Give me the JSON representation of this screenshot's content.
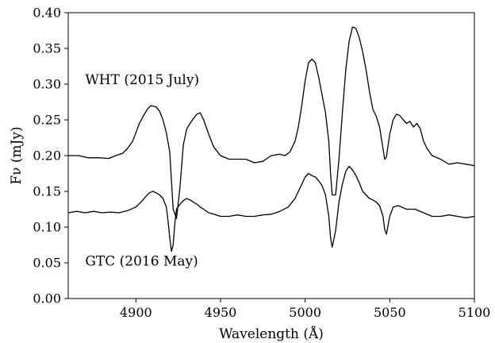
{
  "chart_data": {
    "type": "line",
    "title": "",
    "xlabel": "Wavelength (Å)",
    "ylabel": "Fν (mJy)",
    "xlim": [
      4860,
      5100
    ],
    "ylim": [
      0.0,
      0.4
    ],
    "xticks": [
      4900,
      4950,
      5000,
      5050,
      5100
    ],
    "xtick_labels": [
      "4900",
      "4950",
      "5000",
      "5050",
      "5100"
    ],
    "yticks": [
      0.0,
      0.05,
      0.1,
      0.15,
      0.2,
      0.25,
      0.3,
      0.35,
      0.4
    ],
    "ytick_labels": [
      "0.00",
      "0.05",
      "0.10",
      "0.15",
      "0.20",
      "0.25",
      "0.30",
      "0.35",
      "0.40"
    ],
    "grid": false,
    "legend": "none",
    "annotations": [
      {
        "text": "WHT (2015 July)",
        "x": 4870,
        "y": 0.3
      },
      {
        "text": "GTC (2016 May)",
        "x": 4870,
        "y": 0.046
      }
    ],
    "series": [
      {
        "name": "WHT (2015 July)",
        "color": "#000000",
        "x": [
          4860,
          4866,
          4872,
          4878,
          4884,
          4888,
          4892,
          4895,
          4898,
          4900,
          4902,
          4905,
          4907,
          4909,
          4912,
          4914,
          4916,
          4918,
          4920,
          4921,
          4922,
          4924,
          4926,
          4928,
          4930,
          4932,
          4934,
          4936,
          4938,
          4940,
          4943,
          4946,
          4950,
          4955,
          4960,
          4965,
          4970,
          4975,
          4980,
          4985,
          4988,
          4991,
          4994,
          4996,
          4998,
          5000,
          5002,
          5004,
          5006,
          5008,
          5010,
          5012,
          5014,
          5015,
          5016,
          5018,
          5020,
          5022,
          5024,
          5026,
          5028,
          5030,
          5032,
          5034,
          5036,
          5038,
          5040,
          5042,
          5044,
          5046,
          5047,
          5048,
          5050,
          5052,
          5054,
          5056,
          5058,
          5060,
          5062,
          5064,
          5066,
          5068,
          5070,
          5072,
          5075,
          5080,
          5085,
          5090,
          5095,
          5100
        ],
        "y": [
          0.2,
          0.2,
          0.197,
          0.197,
          0.196,
          0.2,
          0.203,
          0.21,
          0.22,
          0.232,
          0.245,
          0.258,
          0.266,
          0.27,
          0.268,
          0.262,
          0.25,
          0.232,
          0.205,
          0.165,
          0.125,
          0.112,
          0.155,
          0.215,
          0.237,
          0.245,
          0.252,
          0.258,
          0.26,
          0.25,
          0.23,
          0.212,
          0.2,
          0.195,
          0.195,
          0.195,
          0.19,
          0.192,
          0.2,
          0.202,
          0.2,
          0.205,
          0.22,
          0.24,
          0.27,
          0.305,
          0.33,
          0.335,
          0.33,
          0.31,
          0.285,
          0.26,
          0.22,
          0.175,
          0.145,
          0.145,
          0.195,
          0.26,
          0.32,
          0.36,
          0.38,
          0.378,
          0.365,
          0.345,
          0.32,
          0.29,
          0.265,
          0.255,
          0.24,
          0.21,
          0.195,
          0.198,
          0.23,
          0.25,
          0.258,
          0.256,
          0.25,
          0.245,
          0.248,
          0.24,
          0.245,
          0.238,
          0.22,
          0.21,
          0.2,
          0.195,
          0.188,
          0.19,
          0.188,
          0.186
        ]
      },
      {
        "name": "GTC (2016 May)",
        "color": "#000000",
        "x": [
          4860,
          4865,
          4870,
          4875,
          4880,
          4885,
          4890,
          4895,
          4900,
          4903,
          4906,
          4908,
          4910,
          4912,
          4914,
          4916,
          4918,
          4919,
          4920,
          4921,
          4922,
          4923,
          4924,
          4926,
          4928,
          4930,
          4932,
          4934,
          4936,
          4938,
          4940,
          4943,
          4946,
          4950,
          4955,
          4960,
          4965,
          4970,
          4975,
          4980,
          4985,
          4990,
          4994,
          4997,
          5000,
          5002,
          5004,
          5006,
          5008,
          5010,
          5012,
          5014,
          5015,
          5016,
          5018,
          5020,
          5022,
          5024,
          5026,
          5028,
          5030,
          5032,
          5034,
          5036,
          5038,
          5040,
          5042,
          5044,
          5046,
          5047,
          5048,
          5050,
          5052,
          5055,
          5060,
          5065,
          5070,
          5075,
          5080,
          5085,
          5090,
          5095,
          5100
        ],
        "y": [
          0.12,
          0.122,
          0.12,
          0.122,
          0.12,
          0.121,
          0.12,
          0.123,
          0.128,
          0.135,
          0.143,
          0.148,
          0.15,
          0.148,
          0.145,
          0.14,
          0.128,
          0.108,
          0.085,
          0.066,
          0.075,
          0.105,
          0.125,
          0.132,
          0.137,
          0.14,
          0.138,
          0.135,
          0.132,
          0.128,
          0.125,
          0.12,
          0.118,
          0.115,
          0.115,
          0.117,
          0.115,
          0.115,
          0.117,
          0.118,
          0.122,
          0.128,
          0.14,
          0.155,
          0.17,
          0.175,
          0.172,
          0.17,
          0.165,
          0.158,
          0.145,
          0.115,
          0.085,
          0.072,
          0.095,
          0.135,
          0.16,
          0.178,
          0.185,
          0.18,
          0.172,
          0.162,
          0.15,
          0.145,
          0.14,
          0.138,
          0.135,
          0.13,
          0.115,
          0.097,
          0.09,
          0.115,
          0.128,
          0.13,
          0.125,
          0.125,
          0.12,
          0.115,
          0.115,
          0.117,
          0.115,
          0.113,
          0.115
        ]
      }
    ]
  }
}
